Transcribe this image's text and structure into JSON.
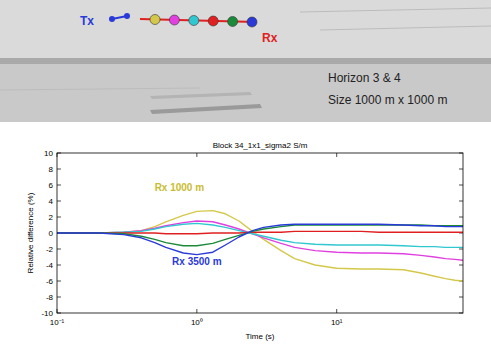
{
  "scene": {
    "tx_label": "Tx",
    "rx_label": "Rx",
    "lines": [
      "Horizon 3 & 4",
      "Size 1000 m x 1000 m"
    ]
  },
  "chart_data": {
    "type": "line",
    "title": "Block 34_1x1_sigma2 S/m",
    "x_label": "Time (s)",
    "y_label": "Relative difference (%)",
    "log": "x",
    "x": [
      0.1,
      0.2,
      0.3,
      0.4,
      0.5,
      0.6,
      0.8,
      1,
      1.3,
      1.6,
      2,
      2.5,
      3,
      4,
      5,
      7,
      10,
      15,
      20,
      30,
      40,
      50,
      60,
      70,
      80
    ],
    "xlim": [
      0.1,
      80
    ],
    "xticks": [
      {
        "value": 0.1,
        "label": "10⁻¹"
      },
      {
        "value": 1,
        "label": "10⁰"
      },
      {
        "value": 10,
        "label": "10¹"
      }
    ],
    "ylim": [
      -10,
      10
    ],
    "yticks": [
      -10,
      -8,
      -6,
      -4,
      -2,
      0,
      2,
      4,
      6,
      8,
      10
    ],
    "grid": false,
    "series": [
      {
        "color": "#d4c84a",
        "values": [
          0,
          0,
          0.1,
          0.3,
          0.8,
          1.4,
          2.2,
          2.7,
          2.8,
          2.4,
          1.5,
          0.2,
          -0.8,
          -2.2,
          -3.2,
          -4.0,
          -4.4,
          -4.5,
          -4.5,
          -4.6,
          -5.0,
          -5.4,
          -5.7,
          -5.9,
          -6.0
        ]
      },
      {
        "color": "#e040e0",
        "values": [
          0,
          0,
          0.1,
          0.3,
          0.6,
          0.9,
          1.3,
          1.5,
          1.4,
          1.0,
          0.5,
          -0.1,
          -0.6,
          -1.3,
          -1.8,
          -2.2,
          -2.4,
          -2.5,
          -2.5,
          -2.6,
          -2.8,
          -3.0,
          -3.2,
          -3.3,
          -3.4
        ]
      },
      {
        "color": "#30c8d0",
        "values": [
          0,
          0,
          0.1,
          0.2,
          0.5,
          0.8,
          1.1,
          1.2,
          1.0,
          0.7,
          0.3,
          -0.1,
          -0.4,
          -0.9,
          -1.2,
          -1.4,
          -1.5,
          -1.5,
          -1.5,
          -1.6,
          -1.7,
          -1.7,
          -1.8,
          -1.8,
          -1.8
        ]
      },
      {
        "color": "#e02020",
        "values": [
          0,
          0,
          0,
          0,
          0,
          -0.1,
          -0.1,
          -0.1,
          0,
          0,
          0,
          0.1,
          0.1,
          0.1,
          0.2,
          0.2,
          0.2,
          0.2,
          0.1,
          0.1,
          0.1,
          0.1,
          0.1,
          0.1,
          0.1
        ]
      },
      {
        "color": "#1a8a3a",
        "values": [
          0,
          0,
          -0.1,
          -0.4,
          -0.8,
          -1.2,
          -1.6,
          -1.6,
          -1.3,
          -0.8,
          -0.3,
          0.2,
          0.5,
          0.8,
          1.0,
          1.0,
          1.0,
          1.0,
          1.0,
          1.0,
          1.0,
          0.9,
          0.9,
          0.9,
          0.9
        ]
      },
      {
        "color": "#2a3ad8",
        "values": [
          0,
          0,
          -0.2,
          -0.6,
          -1.2,
          -1.8,
          -2.5,
          -2.7,
          -2.4,
          -1.5,
          -0.5,
          0.3,
          0.7,
          1.0,
          1.1,
          1.1,
          1.1,
          1.1,
          1.1,
          1.0,
          0.9,
          0.9,
          0.8,
          0.8,
          0.8
        ]
      }
    ],
    "annotations": [
      {
        "text": "Rx 1000 m",
        "x": 0.75,
        "y": 5.2,
        "color": "#c8bc30"
      },
      {
        "text": "Rx 3500 m",
        "x": 1.0,
        "y": -4.0,
        "color": "#2a3ad8"
      }
    ]
  }
}
